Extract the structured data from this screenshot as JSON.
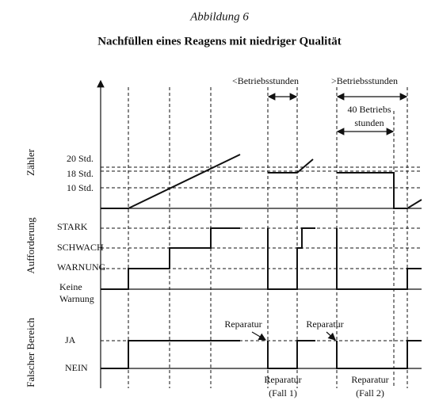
{
  "header": {
    "figure": "Abbildung 6",
    "title": "Nachfüllen eines Reagens mit niedriger Qualität"
  },
  "intervals": {
    "short": "<Betriebsstunden",
    "long": ">Betriebsstunden",
    "hours_line1": "40 Betriebs",
    "hours_line2": "stunden"
  },
  "panels": {
    "counter": {
      "label": "Zähler",
      "levels": [
        "20 Std.",
        "18 Std.",
        "10 Std."
      ]
    },
    "request": {
      "label": "Aufforderung",
      "levels": [
        "STARK",
        "SCHWACH",
        "WARNUNG"
      ],
      "none_line1": "Keine",
      "none_line2": "Warnung"
    },
    "range": {
      "label": "Falscher Bereich",
      "levels": [
        "JA",
        "NEIN"
      ]
    }
  },
  "annotations": {
    "repair_1": "Reparatur",
    "repair_2": "Reparatur"
  },
  "cases": [
    {
      "line1": "Reparatur",
      "line2": "(Fall 1)"
    },
    {
      "line1": "Reparatur",
      "line2": "(Fall 2)"
    }
  ]
}
